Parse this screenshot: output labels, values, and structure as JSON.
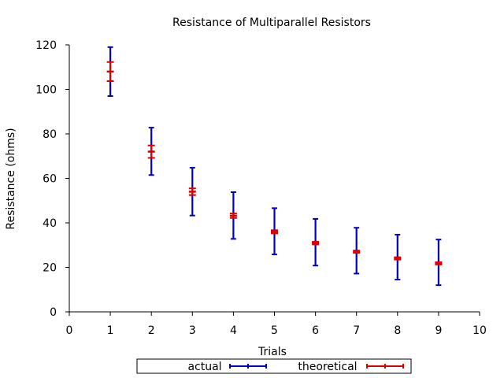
{
  "chart_data": {
    "type": "scatter",
    "title": "Resistance of Multiparallel Resistors",
    "xlabel": "Trials",
    "ylabel": "Resistance (ohms)",
    "xlim": [
      0,
      10
    ],
    "ylim": [
      0,
      120
    ],
    "xticks": [
      0,
      1,
      2,
      3,
      4,
      5,
      6,
      7,
      8,
      9,
      10
    ],
    "yticks": [
      0,
      20,
      40,
      60,
      80,
      100,
      120
    ],
    "grid": false,
    "legend_position": "bottom",
    "series": [
      {
        "name": "actual",
        "color": "#0000cc",
        "x": [
          1,
          2,
          3,
          4,
          5,
          6,
          7,
          8,
          9
        ],
        "y": [
          108,
          72.1,
          54,
          43.2,
          36,
          31.2,
          27.5,
          24.5,
          22.2
        ],
        "err_low": [
          97,
          61.5,
          43.3,
          32.8,
          25.8,
          20.8,
          17.2,
          14.5,
          12
        ],
        "err_high": [
          119,
          82.8,
          64.8,
          53.8,
          46.6,
          41.8,
          37.8,
          34.7,
          32.5
        ]
      },
      {
        "name": "theoretical",
        "color": "#dd0000",
        "x": [
          1,
          2,
          3,
          4,
          5,
          6,
          7,
          8,
          9
        ],
        "y": [
          108,
          72,
          54,
          43.2,
          36,
          30.9,
          27,
          24,
          21.8
        ],
        "err_low": [
          103.7,
          69.2,
          52.5,
          42.2,
          35.3,
          30.3,
          26.5,
          23.5,
          21.3
        ],
        "err_high": [
          112.3,
          74.8,
          55.5,
          44.2,
          36.7,
          31.5,
          27.5,
          24.5,
          22.3
        ]
      }
    ]
  }
}
